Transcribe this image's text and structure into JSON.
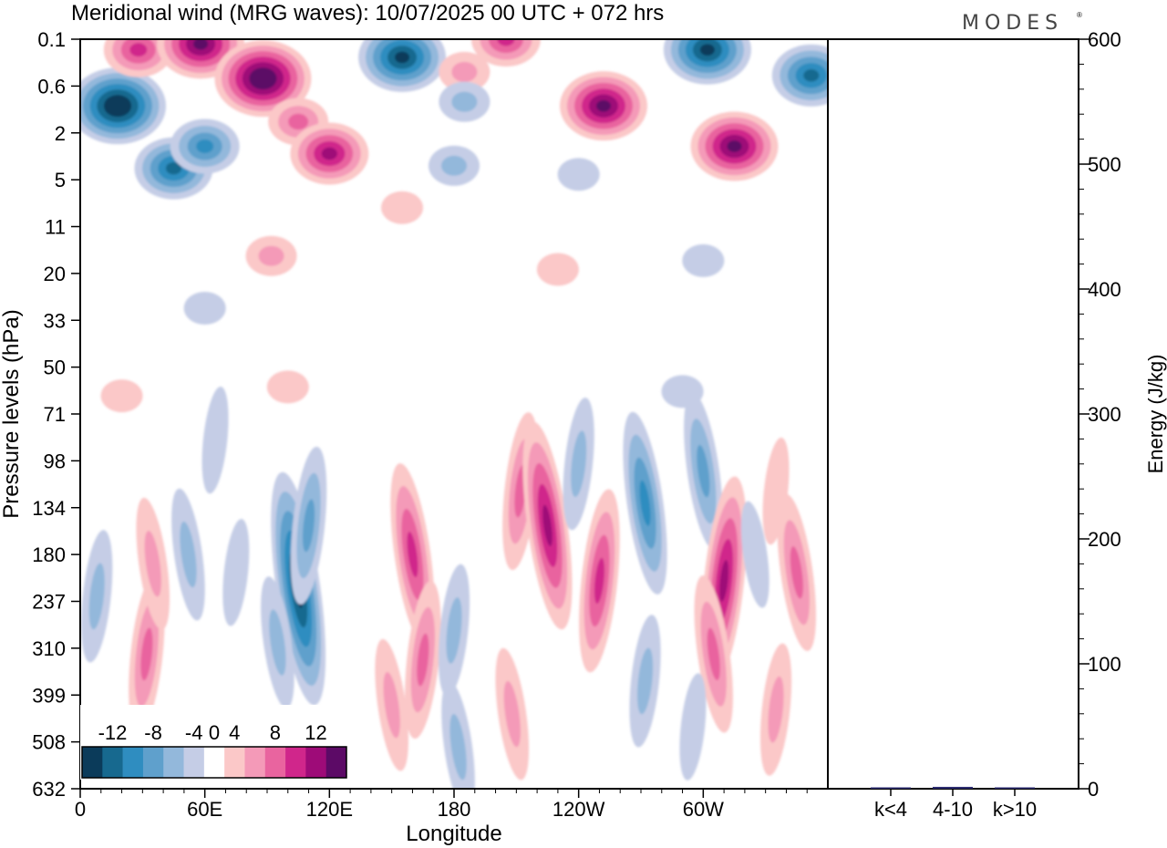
{
  "title": "Meridional wind (MRG waves):  10/07/2025  00 UTC  + 072 hrs",
  "logo": "MODES",
  "chart_data": [
    {
      "type": "heatmap",
      "xlabel": "Longitude",
      "ylabel": "Pressure levels (hPa)",
      "x_ticks": [
        "0",
        "60E",
        "120E",
        "180",
        "120W",
        "60W"
      ],
      "x_tick_values": [
        0,
        60,
        120,
        180,
        240,
        300
      ],
      "xlim": [
        0,
        360
      ],
      "y_ticks": [
        "0.1",
        "0.6",
        "2",
        "5",
        "11",
        "20",
        "33",
        "50",
        "71",
        "98",
        "134",
        "180",
        "237",
        "310",
        "399",
        "508",
        "632"
      ],
      "colorbar": {
        "labels": [
          "-12",
          "-8",
          "-4",
          "0",
          "4",
          "8",
          "12"
        ],
        "levels": [
          -14,
          -12,
          -10,
          -8,
          -6,
          -4,
          -2,
          2,
          4,
          6,
          8,
          10,
          12,
          14
        ],
        "colors": [
          "#0b3b5a",
          "#17698f",
          "#2f8dc0",
          "#5fa0cc",
          "#93b8db",
          "#c5cde6",
          "#ffffff",
          "#fbc8c8",
          "#f49ab8",
          "#e9649f",
          "#d0268b",
          "#9e0b78",
          "#5c0a66"
        ]
      },
      "features": [
        {
          "lon": 18,
          "lev": 1.0,
          "value": -14
        },
        {
          "lon": 45,
          "lev": 4.0,
          "value": -10
        },
        {
          "lon": 60,
          "lev": 2.6,
          "value": -9
        },
        {
          "lon": 28,
          "lev": 0.15,
          "value": 8
        },
        {
          "lon": 58,
          "lev": 0.12,
          "value": 12
        },
        {
          "lon": 88,
          "lev": 0.45,
          "value": 14
        },
        {
          "lon": 105,
          "lev": 1.5,
          "value": 6
        },
        {
          "lon": 120,
          "lev": 3.0,
          "value": 10
        },
        {
          "lon": 155,
          "lev": 0.2,
          "value": -13
        },
        {
          "lon": 185,
          "lev": 0.35,
          "value": 5
        },
        {
          "lon": 205,
          "lev": 0.1,
          "value": 9
        },
        {
          "lon": 252,
          "lev": 1.0,
          "value": 12
        },
        {
          "lon": 302,
          "lev": 0.15,
          "value": -12
        },
        {
          "lon": 315,
          "lev": 2.6,
          "value": 13
        },
        {
          "lon": 352,
          "lev": 0.4,
          "value": -10
        },
        {
          "lon": 185,
          "lev": 0.9,
          "value": -5
        },
        {
          "lon": 180,
          "lev": 3.8,
          "value": -4
        },
        {
          "lon": 240,
          "lev": 4.5,
          "value": -3
        },
        {
          "lon": 155,
          "lev": 8.0,
          "value": 3
        },
        {
          "lon": 230,
          "lev": 19.0,
          "value": 3
        },
        {
          "lon": 92,
          "lev": 16.0,
          "value": 4
        },
        {
          "lon": 300,
          "lev": 17.0,
          "value": -3
        },
        {
          "lon": 60,
          "lev": 29.0,
          "value": -3
        },
        {
          "lon": 290,
          "lev": 60.0,
          "value": -3
        },
        {
          "lon": 20,
          "lev": 62.0,
          "value": 3
        },
        {
          "lon": 100,
          "lev": 58.0,
          "value": 3
        },
        {
          "lon": 65,
          "lev": 85.0,
          "value": -3
        },
        {
          "lon": 105,
          "lev": 220.0,
          "value": -13
        },
        {
          "lon": 110,
          "lev": 150.0,
          "value": -7
        },
        {
          "lon": 95,
          "lev": 300.0,
          "value": -5
        },
        {
          "lon": 32,
          "lev": 320.0,
          "value": 7
        },
        {
          "lon": 35,
          "lev": 190.0,
          "value": 5
        },
        {
          "lon": 8,
          "lev": 230.0,
          "value": -5
        },
        {
          "lon": 52,
          "lev": 180.0,
          "value": -4
        },
        {
          "lon": 75,
          "lev": 200.0,
          "value": -3
        },
        {
          "lon": 160,
          "lev": 180.0,
          "value": 8
        },
        {
          "lon": 165,
          "lev": 330.0,
          "value": 6
        },
        {
          "lon": 150,
          "lev": 420.0,
          "value": 5
        },
        {
          "lon": 180,
          "lev": 280.0,
          "value": -4
        },
        {
          "lon": 182,
          "lev": 520.0,
          "value": -5
        },
        {
          "lon": 212,
          "lev": 120.0,
          "value": 7
        },
        {
          "lon": 225,
          "lev": 150.0,
          "value": 10
        },
        {
          "lon": 250,
          "lev": 210.0,
          "value": 9
        },
        {
          "lon": 208,
          "lev": 440.0,
          "value": 5
        },
        {
          "lon": 240,
          "lev": 100.0,
          "value": -5
        },
        {
          "lon": 272,
          "lev": 130.0,
          "value": -8
        },
        {
          "lon": 272,
          "lev": 370.0,
          "value": -5
        },
        {
          "lon": 300,
          "lev": 105.0,
          "value": -6
        },
        {
          "lon": 310,
          "lev": 210.0,
          "value": 11
        },
        {
          "lon": 305,
          "lev": 320.0,
          "value": 6
        },
        {
          "lon": 335,
          "lev": 120.0,
          "value": 3
        },
        {
          "lon": 345,
          "lev": 200.0,
          "value": 7
        },
        {
          "lon": 335,
          "lev": 430.0,
          "value": 5
        },
        {
          "lon": 325,
          "lev": 180.0,
          "value": -3
        },
        {
          "lon": 295,
          "lev": 470.0,
          "value": -3
        }
      ]
    },
    {
      "type": "bar",
      "ylabel": "Energy (J/kg)",
      "categories": [
        "k<4",
        "4-10",
        "k>10"
      ],
      "values": [
        0.3,
        1.5,
        0.2
      ],
      "ylim": [
        0,
        600
      ],
      "y_ticks": [
        "0",
        "100",
        "200",
        "300",
        "400",
        "500",
        "600"
      ],
      "bar_color": "#2a2a6e"
    }
  ]
}
